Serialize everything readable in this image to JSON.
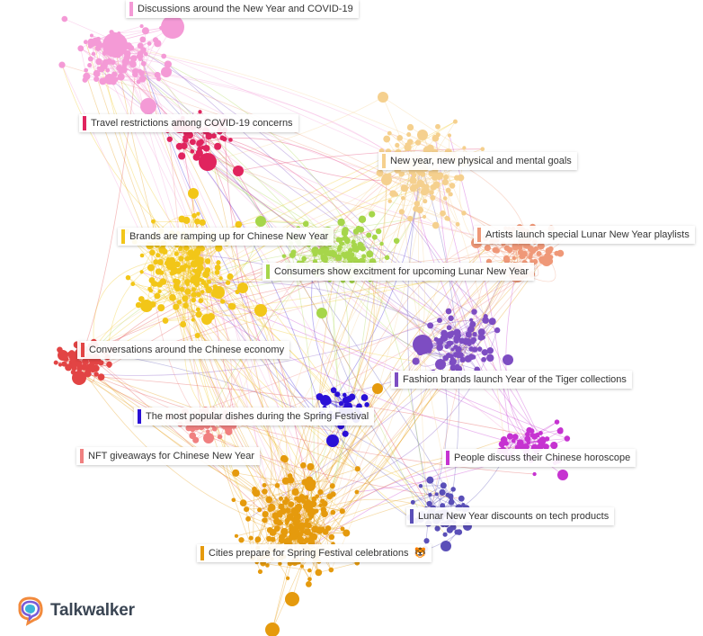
{
  "clusters": [
    {
      "id": "covid-ny",
      "label": "Discussions around the New Year and COVID-19",
      "color": "#f49ad6"
    },
    {
      "id": "travel",
      "label": "Travel restrictions among COVID-19 concerns",
      "color": "#e0245e"
    },
    {
      "id": "goals",
      "label": "New year, new physical and mental goals",
      "color": "#f5d08e"
    },
    {
      "id": "playlists",
      "label": "Artists launch special Lunar New Year playlists",
      "color": "#ef9878"
    },
    {
      "id": "brands",
      "label": "Brands are ramping up for Chinese New Year",
      "color": "#f2c618"
    },
    {
      "id": "excitement",
      "label": "Consumers show excitment for upcoming Lunar New Year",
      "color": "#a6d64a"
    },
    {
      "id": "economy",
      "label": "Conversations around the Chinese economy",
      "color": "#e24444"
    },
    {
      "id": "fashion",
      "label": "Fashion brands launch Year of the Tiger collections",
      "color": "#7d4dc2"
    },
    {
      "id": "dishes",
      "label": "The most popular dishes during the Spring Festival",
      "color": "#2a10d6"
    },
    {
      "id": "nft",
      "label": "NFT giveaways for Chinese New Year",
      "color": "#f08080"
    },
    {
      "id": "horoscope",
      "label": "People discuss their Chinese horoscope",
      "color": "#c633d1"
    },
    {
      "id": "tech",
      "label": "Lunar New Year discounts on tech products",
      "color": "#5a4fb8"
    },
    {
      "id": "cities",
      "label": "Cities prepare for Spring Festival celebrations",
      "color": "#e59a0d"
    }
  ],
  "brand": {
    "name": "Talkwalker"
  }
}
